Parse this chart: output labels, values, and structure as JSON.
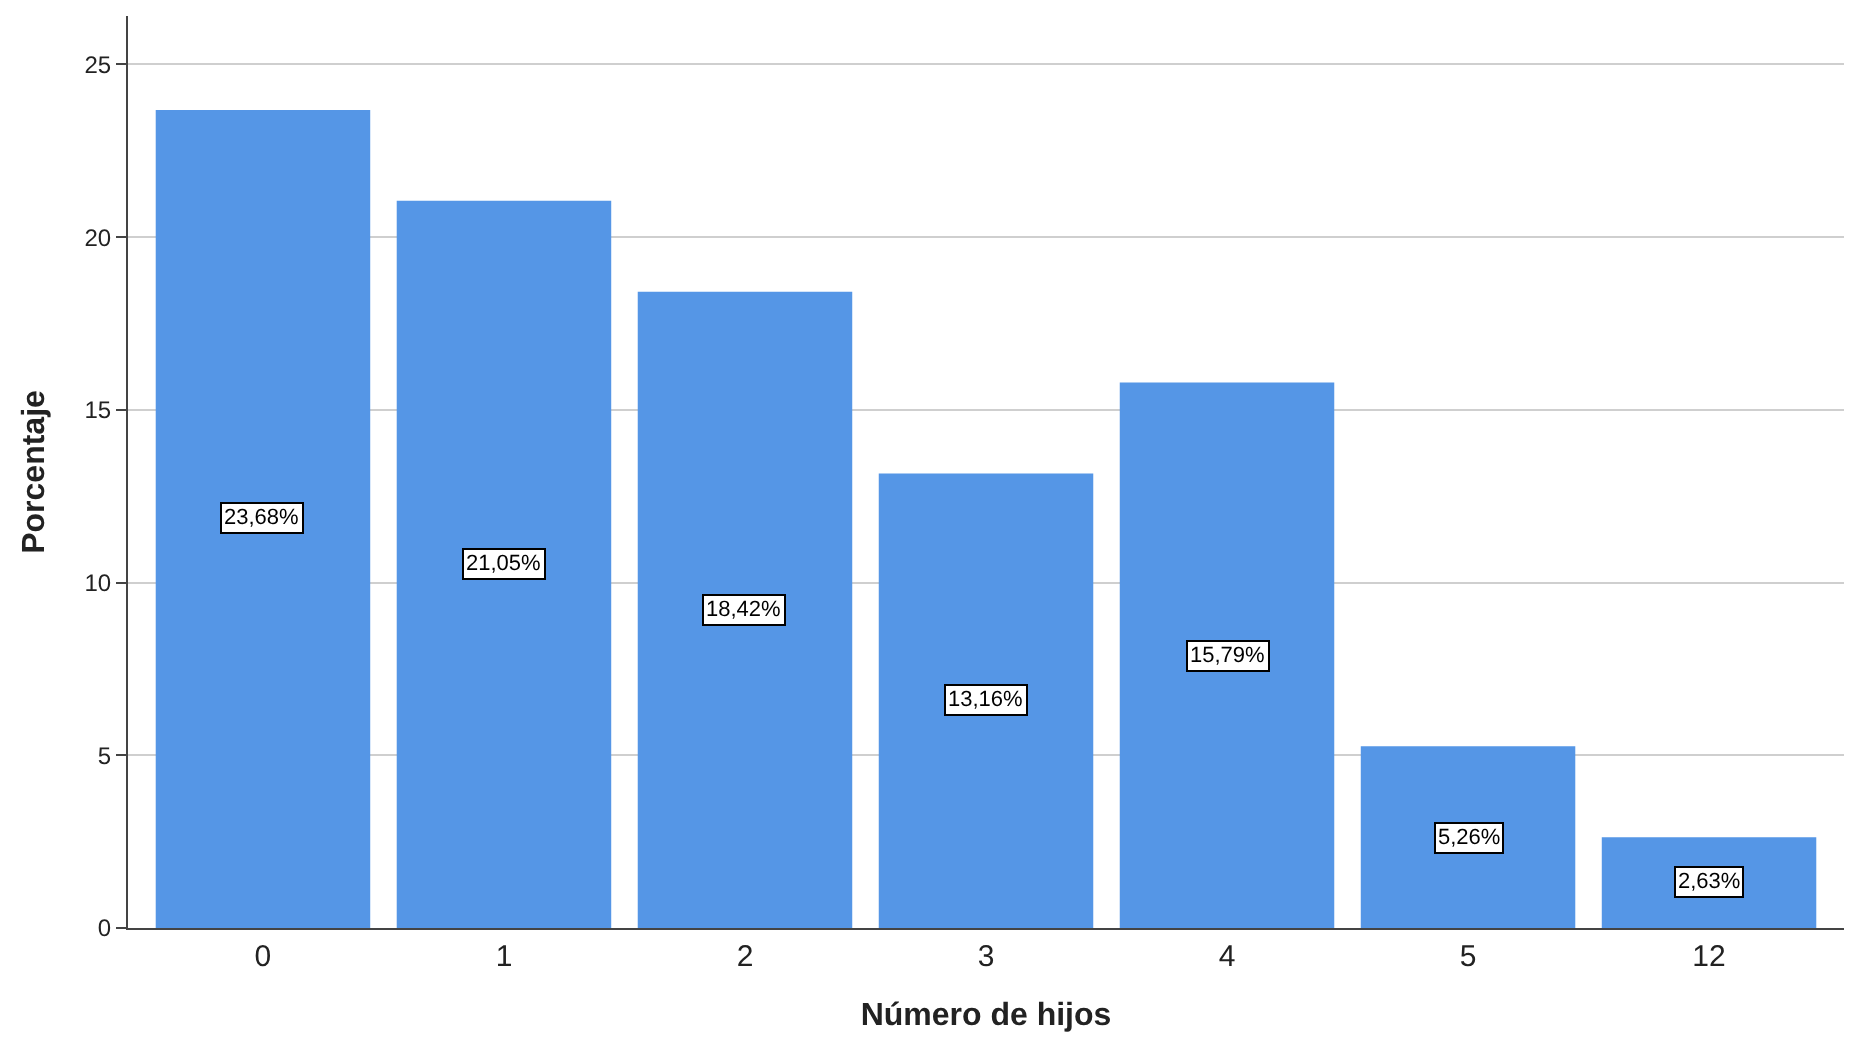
{
  "chart_data": {
    "type": "bar",
    "xlabel": "Número de hijos",
    "ylabel": "Porcentaje",
    "categories": [
      "0",
      "1",
      "2",
      "3",
      "4",
      "5",
      "12"
    ],
    "values": [
      23.68,
      21.05,
      18.42,
      13.16,
      15.79,
      5.26,
      2.63
    ],
    "value_labels": [
      "23,68%",
      "21,05%",
      "18,42%",
      "13,16%",
      "15,79%",
      "5,26%",
      "2,63%"
    ],
    "color": "#5596e6",
    "ylim": [
      0,
      26.4
    ],
    "yticks": [
      0,
      5,
      10,
      15,
      20,
      25
    ],
    "grid": "y",
    "legend": false
  }
}
